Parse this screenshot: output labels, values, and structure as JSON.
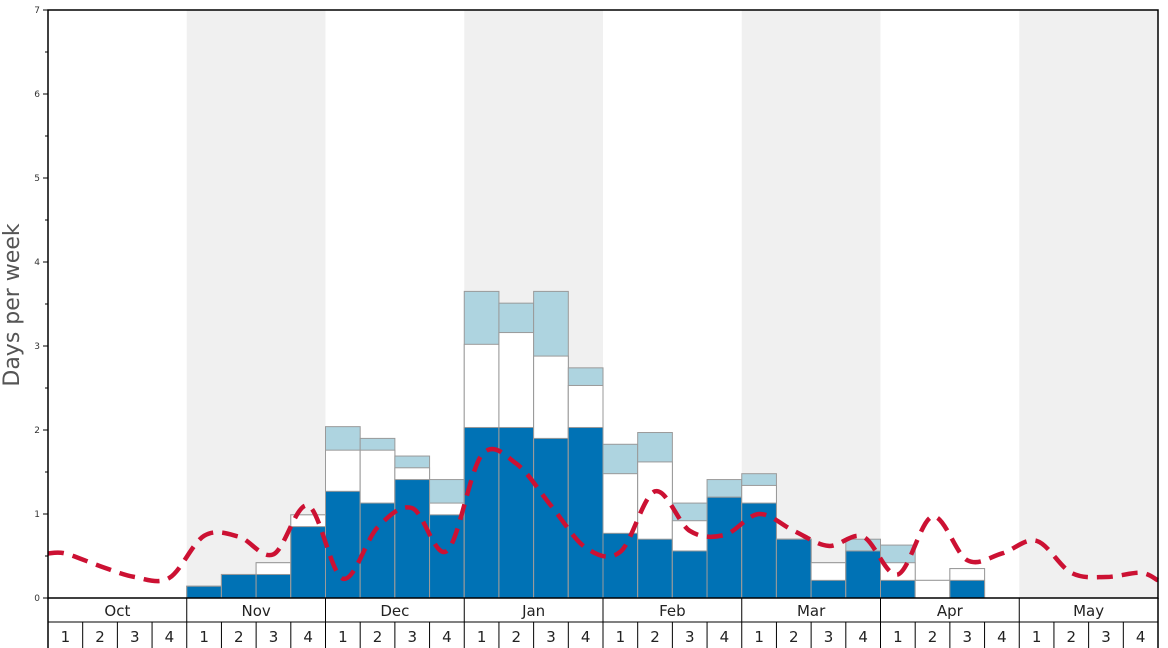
{
  "chart_data": {
    "type": "bar",
    "ylabel": "Days per week",
    "ylim": [
      0,
      7
    ],
    "yticks": [
      0,
      1,
      2,
      3,
      4,
      5,
      6,
      7
    ],
    "months": [
      "Oct",
      "Nov",
      "Dec",
      "Jan",
      "Feb",
      "Mar",
      "Apr",
      "May"
    ],
    "week_labels": [
      "1",
      "2",
      "3",
      "4"
    ],
    "colors": {
      "dark": "#0072b5",
      "white": "#ffffff",
      "light": "#aed4e0",
      "line": "#cc1133",
      "band": "#f0f0f0",
      "bar_stroke": "#9a9a9a"
    },
    "series": [
      {
        "values": [
          0,
          0,
          0,
          0,
          0.14,
          0.28,
          0.28,
          0.85,
          1.27,
          1.13,
          1.41,
          0.99,
          2.03,
          2.03,
          1.9,
          2.03,
          0.77,
          0.7,
          0.56,
          1.2,
          1.13,
          0.7,
          0.21,
          0.56,
          0.21,
          0,
          0.21,
          0,
          0,
          0,
          0,
          0
        ]
      },
      {
        "values": [
          0,
          0,
          0,
          0,
          0.14,
          0.28,
          0.42,
          0.99,
          1.76,
          1.76,
          1.55,
          1.13,
          3.02,
          3.16,
          2.88,
          2.53,
          1.48,
          1.62,
          0.92,
          1.2,
          1.34,
          0.7,
          0.42,
          0.56,
          0.42,
          0.21,
          0.35,
          0,
          0,
          0,
          0,
          0
        ]
      },
      {
        "values": [
          0,
          0,
          0,
          0,
          0.14,
          0.28,
          0.42,
          0.99,
          2.04,
          1.9,
          1.69,
          1.41,
          3.65,
          3.51,
          3.65,
          2.74,
          1.83,
          1.97,
          1.13,
          1.41,
          1.48,
          0.7,
          0.42,
          0.7,
          0.63,
          0.21,
          0.35,
          0,
          0,
          0,
          0,
          0
        ]
      },
      {
        "values": [
          0.53,
          0.38,
          0.25,
          0.24,
          0.74,
          0.73,
          0.52,
          1.1,
          0.23,
          0.84,
          1.07,
          0.56,
          1.7,
          1.6,
          1.1,
          0.6,
          0.55,
          1.27,
          0.8,
          0.75,
          1.0,
          0.8,
          0.62,
          0.73,
          0.28,
          0.97,
          0.45,
          0.53,
          0.68,
          0.3,
          0.25,
          0.3
        ]
      }
    ]
  }
}
